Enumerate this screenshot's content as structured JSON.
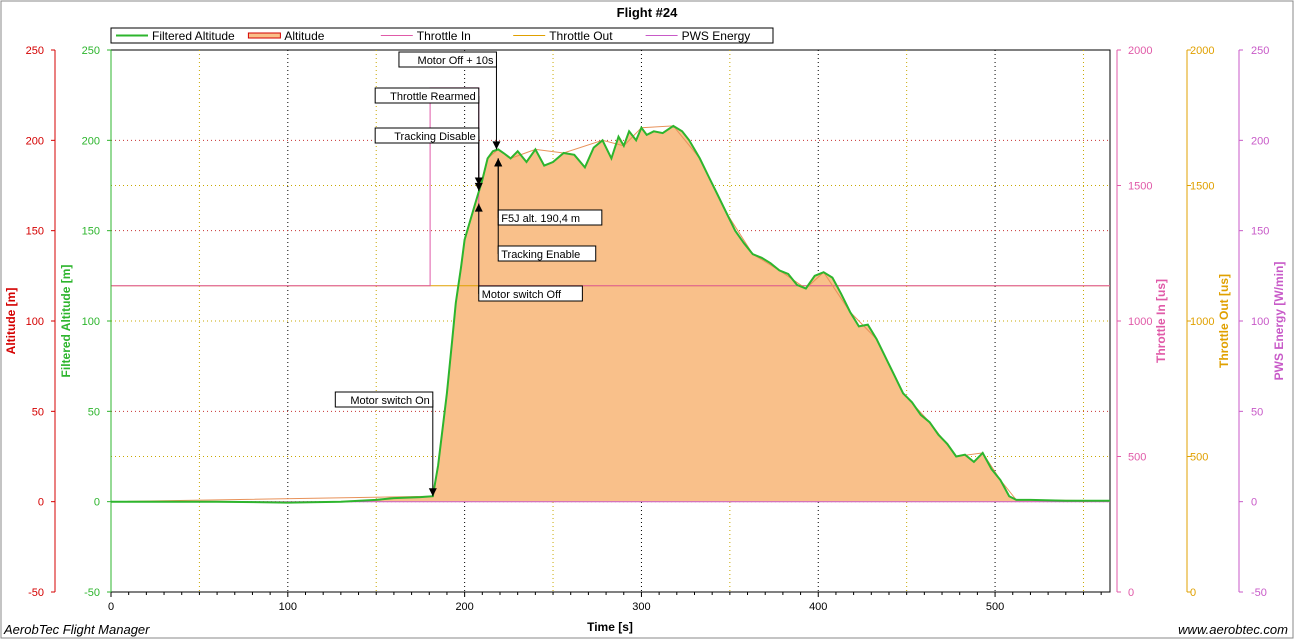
{
  "footer": {
    "app_name": "AerobTec Flight Manager",
    "website": "www.aerobtec.com"
  },
  "colors": {
    "altitude": "#d40000",
    "filtered_altitude": "#2db52d",
    "throttle_in": "#e05aa8",
    "throttle_out": "#e0a000",
    "pws_energy": "#c85ac8",
    "altitude_fill": "#f9c08a",
    "grid": "#000000",
    "grid_red": "#c83232",
    "grid_yellow": "#c8a800"
  },
  "chart_data": {
    "type": "line",
    "title": "Flight #24",
    "xlabel": "Time [s]",
    "xlim": [
      0,
      565
    ],
    "xticks": [
      0,
      100,
      200,
      300,
      400,
      500
    ],
    "legend": [
      {
        "name": "Filtered Altitude",
        "color": "#2db52d"
      },
      {
        "name": "Altitude",
        "color": "#e06010"
      },
      {
        "name": "Throttle In",
        "color": "#e05aa8"
      },
      {
        "name": "Throttle Out",
        "color": "#e0a000"
      },
      {
        "name": "PWS Energy",
        "color": "#c85ac8"
      }
    ],
    "legend_position": "top",
    "axes": {
      "altitude": {
        "label": "Altitude [m]",
        "range": [
          -50,
          250
        ],
        "ticks": [
          -50,
          0,
          50,
          100,
          150,
          200,
          250
        ],
        "color": "#d40000"
      },
      "filtered_altitude": {
        "label": "Filtered Altitude [m]",
        "range": [
          -50,
          250
        ],
        "ticks": [
          -50,
          0,
          50,
          100,
          150,
          200,
          250
        ],
        "color": "#2db52d"
      },
      "throttle_in": {
        "label": "Throttle In [us]",
        "range": [
          0,
          2000
        ],
        "ticks": [
          0,
          500,
          1000,
          1500,
          2000
        ],
        "color": "#e05aa8"
      },
      "throttle_out": {
        "label": "Throttle Out [us]",
        "range": [
          0,
          2000
        ],
        "ticks": [
          0,
          500,
          1000,
          1500,
          2000
        ],
        "color": "#e0a000"
      },
      "pws_energy": {
        "label": "PWS Energy [W/min]",
        "range": [
          -50,
          250
        ],
        "ticks": [
          -50,
          0,
          50,
          100,
          150,
          200,
          250
        ],
        "color": "#c85ac8"
      }
    },
    "series": [
      {
        "name": "Filtered Altitude",
        "axis": "filtered_altitude",
        "x": [
          0,
          20,
          60,
          100,
          130,
          150,
          160,
          175,
          182,
          185,
          190,
          193,
          195,
          198,
          200,
          203,
          206,
          210,
          213,
          216,
          219,
          222,
          226,
          230,
          235,
          240,
          245,
          250,
          256,
          262,
          268,
          273,
          278,
          283,
          287,
          290,
          293,
          297,
          300,
          303,
          307,
          312,
          318,
          323,
          327,
          333,
          338,
          343,
          348,
          353,
          358,
          363,
          368,
          373,
          378,
          383,
          388,
          393,
          398,
          403,
          408,
          413,
          418,
          423,
          428,
          433,
          438,
          443,
          448,
          453,
          458,
          463,
          468,
          473,
          478,
          483,
          488,
          493,
          498,
          503,
          508,
          512,
          520,
          540,
          565
        ],
        "y": [
          0,
          0,
          0,
          -0.5,
          0,
          1,
          2,
          2.5,
          3,
          20,
          60,
          90,
          110,
          130,
          145,
          155,
          165,
          178,
          190,
          194,
          195,
          193,
          190,
          194,
          188,
          195,
          186,
          188,
          193,
          192,
          185,
          196,
          200,
          190,
          202,
          197,
          205,
          200,
          207,
          203,
          205,
          204,
          208,
          205,
          200,
          190,
          180,
          170,
          160,
          150,
          143,
          137,
          135,
          132,
          128,
          126,
          120,
          118,
          125,
          127,
          124,
          115,
          105,
          97,
          98,
          90,
          80,
          70,
          60,
          55,
          48,
          44,
          37,
          32,
          25,
          26,
          22,
          27,
          18,
          12,
          3,
          1,
          1,
          0.5,
          0.5
        ]
      },
      {
        "name": "Altitude",
        "axis": "altitude",
        "x": [
          0,
          182,
          185,
          190,
          195,
          200,
          206,
          213,
          219,
          226,
          240,
          256,
          278,
          290,
          300,
          318,
          333,
          348,
          363,
          378,
          393,
          403,
          418,
          433,
          448,
          463,
          478,
          493,
          503,
          512,
          565
        ],
        "y": [
          0,
          3,
          20,
          60,
          110,
          145,
          165,
          190,
          195,
          190,
          195,
          193,
          200,
          197,
          207,
          208,
          190,
          160,
          137,
          128,
          118,
          127,
          105,
          90,
          60,
          44,
          25,
          27,
          12,
          1,
          0.5
        ]
      },
      {
        "name": "Throttle In",
        "axis": "throttle_in",
        "x": [
          0,
          180.5,
          180.5,
          208,
          208,
          565
        ],
        "y": [
          1130,
          1130,
          1860,
          1860,
          1130,
          1130
        ]
      },
      {
        "name": "Throttle Out",
        "axis": "throttle_out",
        "x": [
          0,
          565
        ],
        "y": [
          1130,
          1130
        ]
      },
      {
        "name": "PWS Energy",
        "axis": "pws_energy",
        "x": [
          0,
          565
        ],
        "y": [
          0,
          0
        ]
      }
    ],
    "annotations": [
      {
        "text": "Motor Off + 10s",
        "x": 218,
        "y": 195
      },
      {
        "text": "Throttle Rearmed",
        "x": 208,
        "y": 175
      },
      {
        "text": "Tracking Disable",
        "x": 208,
        "y": 172
      },
      {
        "text": "F5J alt. 190,4 m",
        "x": 219,
        "y": 190
      },
      {
        "text": "Tracking Enable",
        "x": 219,
        "y": 190
      },
      {
        "text": "Motor switch Off",
        "x": 208,
        "y": 165
      },
      {
        "text": "Motor switch On",
        "x": 182,
        "y": 3
      }
    ]
  }
}
